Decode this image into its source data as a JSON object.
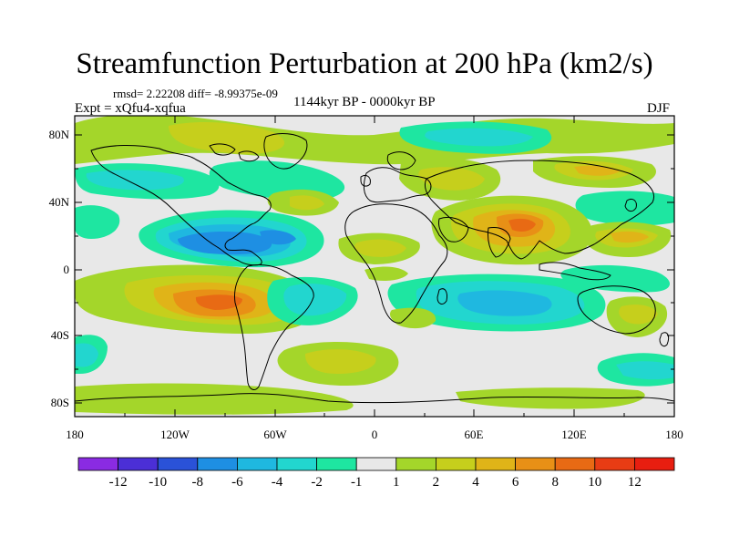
{
  "figure": {
    "title": "Streamfunction Perturbation at 200 hPa (km2/s)",
    "stats": "rmsd= 2.22208 diff= -8.99375e-09",
    "experiment": "Expt = xQfu4-xqfua",
    "period": "1144kyr BP - 0000kyr BP",
    "season": "DJF"
  },
  "axes": {
    "lat_labels": [
      "80N",
      "40N",
      "0",
      "40S",
      "80S"
    ],
    "lon_labels": [
      "180",
      "120W",
      "60W",
      "0",
      "60E",
      "120E",
      "180"
    ]
  },
  "colorbar": {
    "levels": [
      "-12",
      "-10",
      "-8",
      "-6",
      "-4",
      "-2",
      "-1",
      "1",
      "2",
      "4",
      "6",
      "8",
      "10",
      "12"
    ],
    "colors": [
      "#8a2be2",
      "#4b2fd6",
      "#2a52d8",
      "#1e8fe3",
      "#1fb8e0",
      "#22d6cf",
      "#1ee6a1",
      "#e8e8e8",
      "#a4d62a",
      "#c6cf1c",
      "#e0b418",
      "#e89016",
      "#e86a14",
      "#e83c14",
      "#e81e10"
    ]
  },
  "chart_data": {
    "type": "contour-map",
    "projection": "cylindrical-equidistant",
    "lon_range": [
      -180,
      180
    ],
    "lat_range": [
      -90,
      90
    ],
    "features": [
      {
        "sign": "negative",
        "region": "Caribbean / Gulf of Mexico",
        "approx_min": -8
      },
      {
        "sign": "positive",
        "region": "South America / SE Pacific",
        "approx_max": 8
      },
      {
        "sign": "positive",
        "region": "South Asia / Tibet",
        "approx_max": 8
      },
      {
        "sign": "negative",
        "region": "Indian Ocean",
        "approx_min": -4
      },
      {
        "sign": "negative",
        "region": "North Pacific",
        "approx_min": -4
      },
      {
        "sign": "positive",
        "region": "North Africa / Mediterranean",
        "approx_max": 4
      }
    ]
  }
}
